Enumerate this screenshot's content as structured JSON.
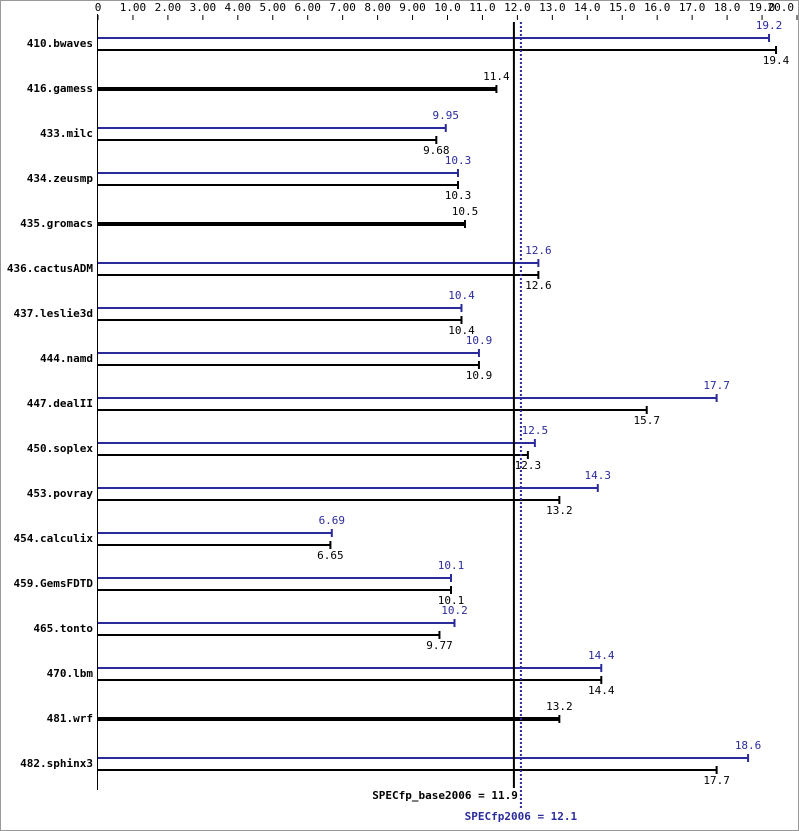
{
  "chart_data": {
    "type": "bar",
    "orientation": "horizontal",
    "categories": [
      "410.bwaves",
      "416.gamess",
      "433.milc",
      "434.zeusmp",
      "435.gromacs",
      "436.cactusADM",
      "437.leslie3d",
      "444.namd",
      "447.dealII",
      "450.soplex",
      "453.povray",
      "454.calculix",
      "459.GemsFDTD",
      "465.tonto",
      "470.lbm",
      "481.wrf",
      "482.sphinx3"
    ],
    "series": [
      {
        "color": "#2b2b9c",
        "values": [
          19.2,
          null,
          9.95,
          10.3,
          null,
          12.6,
          10.4,
          10.9,
          17.7,
          12.5,
          14.3,
          6.69,
          10.1,
          10.2,
          14.4,
          null,
          18.6
        ]
      },
      {
        "color": "#000000",
        "values": [
          19.4,
          11.4,
          9.68,
          10.3,
          10.5,
          12.6,
          10.4,
          10.9,
          15.7,
          12.3,
          13.2,
          6.65,
          10.1,
          9.77,
          14.4,
          13.2,
          17.7
        ]
      }
    ],
    "xlim": [
      0,
      20
    ],
    "xticks": [
      0,
      {
        "value": 1,
        "label": "1.00"
      },
      {
        "value": 2,
        "label": "2.00"
      },
      {
        "value": 3,
        "label": "3.00"
      },
      {
        "value": 4,
        "label": "4.00"
      },
      {
        "value": 5,
        "label": "5.00"
      },
      {
        "value": 6,
        "label": "6.00"
      },
      {
        "value": 7,
        "label": "7.00"
      },
      {
        "value": 8,
        "label": "8.00"
      },
      {
        "value": 9,
        "label": "9.00"
      },
      {
        "value": 10,
        "label": "10.0"
      },
      {
        "value": 11,
        "label": "11.0"
      },
      {
        "value": 12,
        "label": "12.0"
      },
      {
        "value": 13,
        "label": "13.0"
      },
      {
        "value": 14,
        "label": "14.0"
      },
      {
        "value": 15,
        "label": "15.0"
      },
      {
        "value": 16,
        "label": "16.0"
      },
      {
        "value": 17,
        "label": "17.0"
      },
      {
        "value": 18,
        "label": "18.0"
      },
      {
        "value": 19,
        "label": "19.0"
      },
      {
        "value": 20,
        "label": "20.0"
      }
    ],
    "reference_lines": [
      {
        "label": "SPECfp_base2006 = 11.9",
        "value": 11.9,
        "color": "#000000",
        "style": "solid"
      },
      {
        "label": "SPECfp2006 = 12.1",
        "value": 12.1,
        "color": "#2b2b9c",
        "style": "dotted"
      }
    ]
  }
}
